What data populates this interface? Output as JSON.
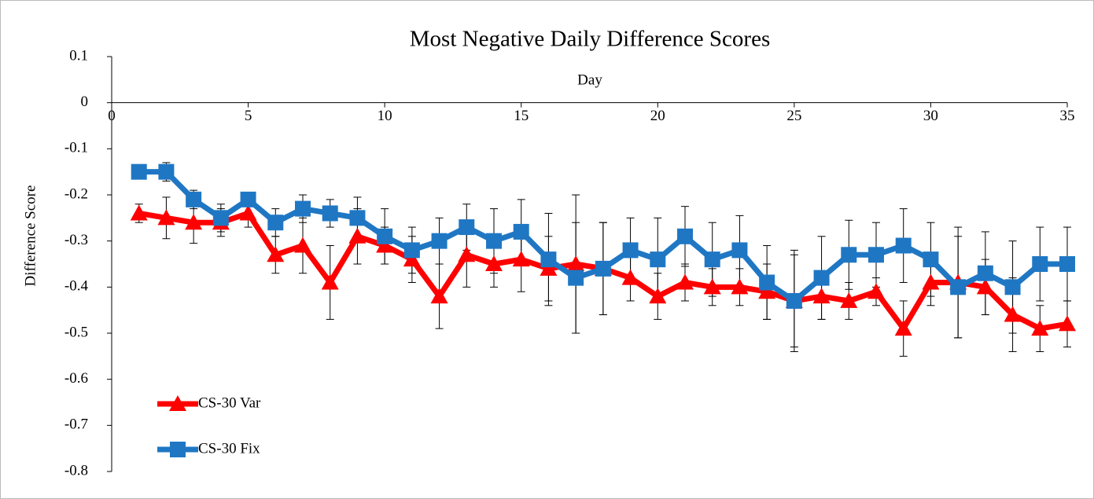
{
  "chart_data": {
    "type": "line",
    "title": "Most Negative Daily Difference Scores",
    "x_label": "Day",
    "y_label": "Difference Score",
    "x": [
      1,
      2,
      3,
      4,
      5,
      6,
      7,
      8,
      9,
      10,
      11,
      12,
      13,
      14,
      15,
      16,
      17,
      18,
      19,
      20,
      21,
      22,
      23,
      24,
      25,
      26,
      27,
      28,
      29,
      30,
      31,
      32,
      33,
      34,
      35
    ],
    "series": [
      {
        "name": "CS-30 Var",
        "color": "#ff0000",
        "marker": "triangle",
        "values": [
          -0.24,
          -0.25,
          -0.26,
          -0.26,
          -0.24,
          -0.33,
          -0.31,
          -0.39,
          -0.29,
          -0.31,
          -0.34,
          -0.42,
          -0.33,
          -0.35,
          -0.34,
          -0.36,
          -0.35,
          -0.36,
          -0.38,
          -0.42,
          -0.39,
          -0.4,
          -0.4,
          -0.41,
          -0.43,
          -0.42,
          -0.43,
          -0.41,
          -0.49,
          -0.39,
          -0.39,
          -0.4,
          -0.46,
          -0.49,
          -0.48
        ],
        "errors": [
          0.02,
          0.045,
          0.045,
          0.03,
          0.03,
          0.04,
          0.06,
          0.08,
          0.06,
          0.04,
          0.05,
          0.07,
          0.07,
          0.05,
          0.07,
          0.07,
          0.15,
          0.1,
          0.05,
          0.05,
          0.04,
          0.04,
          0.04,
          0.06,
          0.1,
          0.05,
          0.04,
          0.03,
          0.06,
          0.05,
          0.12,
          0.06,
          0.08,
          0.05,
          0.05
        ]
      },
      {
        "name": "CS-30 Fix",
        "color": "#1f77c4",
        "marker": "square",
        "values": [
          -0.15,
          -0.15,
          -0.21,
          -0.25,
          -0.21,
          -0.26,
          -0.23,
          -0.24,
          -0.25,
          -0.29,
          -0.32,
          -0.3,
          -0.27,
          -0.3,
          -0.28,
          -0.34,
          -0.38,
          -0.36,
          -0.32,
          -0.34,
          -0.29,
          -0.34,
          -0.32,
          -0.39,
          -0.43,
          -0.38,
          -0.33,
          -0.33,
          -0.31,
          -0.34,
          -0.4,
          -0.37,
          -0.4,
          -0.35,
          -0.35
        ],
        "errors": [
          0.01,
          0.02,
          0.02,
          0.03,
          0.015,
          0.03,
          0.03,
          0.03,
          0.045,
          0.06,
          0.05,
          0.05,
          0.05,
          0.07,
          0.07,
          0.1,
          0.12,
          0.1,
          0.07,
          0.09,
          0.065,
          0.08,
          0.075,
          0.08,
          0.11,
          0.09,
          0.075,
          0.07,
          0.08,
          0.08,
          0.11,
          0.09,
          0.1,
          0.08,
          0.08
        ]
      }
    ],
    "xlim": [
      0,
      35
    ],
    "xticks": [
      0,
      5,
      10,
      15,
      20,
      25,
      30,
      35
    ],
    "ylim": [
      -0.8,
      0.1
    ],
    "yticks": [
      0.1,
      0,
      -0.1,
      -0.2,
      -0.3,
      -0.4,
      -0.5,
      -0.6,
      -0.7,
      -0.8
    ],
    "legend": "bottom-left"
  }
}
